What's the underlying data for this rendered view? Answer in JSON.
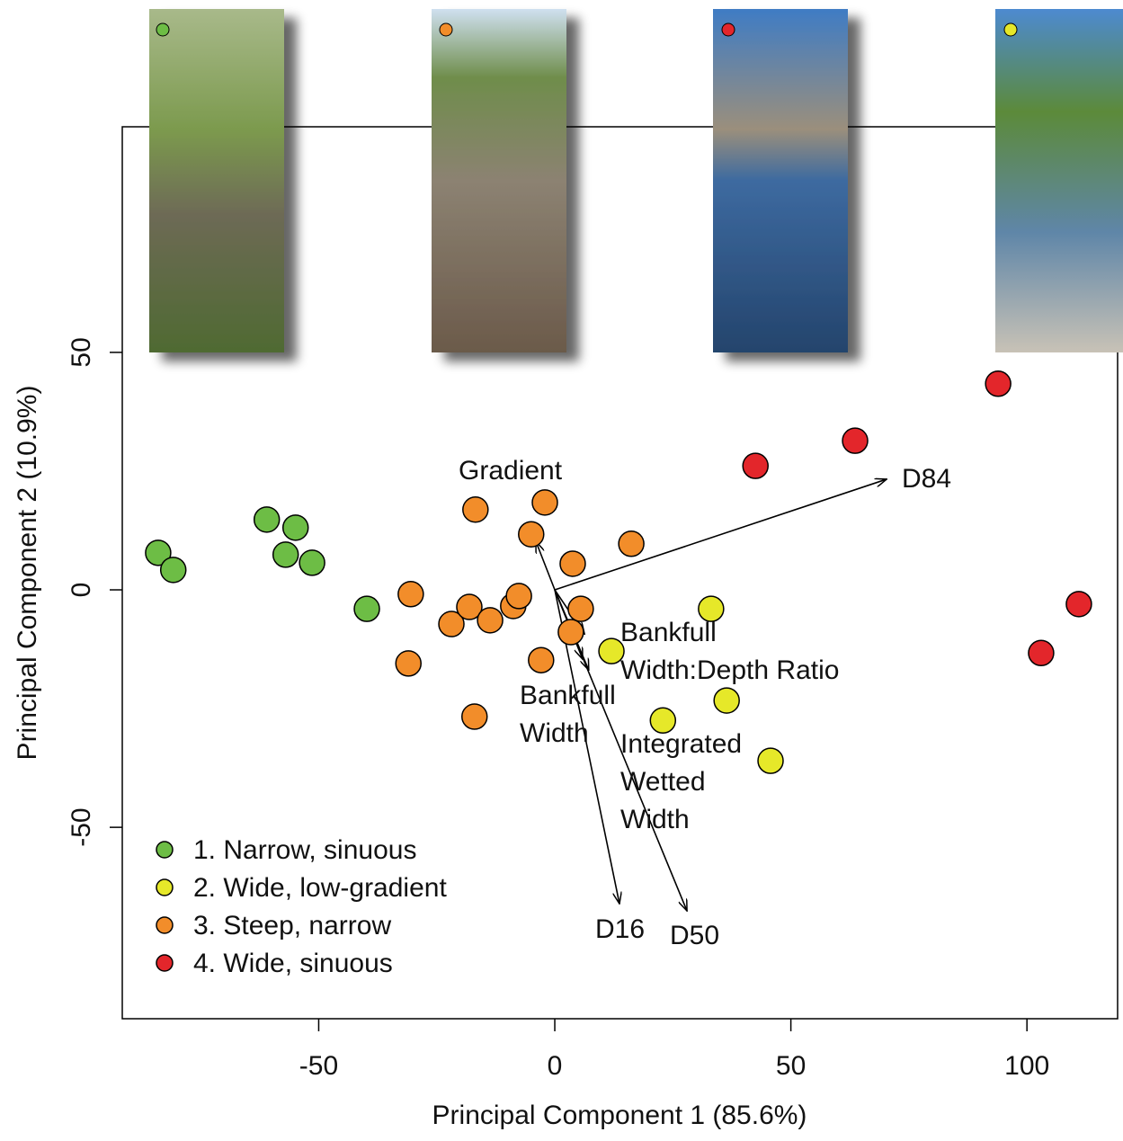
{
  "chart_data": {
    "type": "scatter",
    "x_label": "Principal Component 1 (85.6%)",
    "y_label": "Principal Component 2 (10.9%)",
    "xlim": [
      -91.6,
      119.2
    ],
    "ylim": [
      -90.3,
      97.5
    ],
    "xticks": [
      -50,
      0,
      50,
      100
    ],
    "yticks": [
      -50,
      0,
      50
    ],
    "legend": "bottom-left",
    "series": [
      {
        "name": "1. Narrow, sinuous",
        "color": "#6dbd45",
        "x": [
          -84.0,
          -80.8,
          -61.0,
          -54.9,
          -57.0,
          -51.4,
          -39.8
        ],
        "y": [
          7.8,
          4.2,
          14.8,
          13.1,
          7.4,
          5.7,
          -4.0
        ]
      },
      {
        "name": "2. Wide, low-gradient",
        "color": "#e6e829",
        "x": [
          33.1,
          12.0,
          36.4,
          22.9,
          45.7
        ],
        "y": [
          -4.0,
          -12.9,
          -23.3,
          -27.5,
          -36.0
        ]
      },
      {
        "name": "3. Steep, narrow",
        "color": "#f28d2a",
        "x": [
          -30.5,
          -21.9,
          -18.1,
          -13.7,
          -8.8,
          -7.6,
          5.5,
          3.4,
          -2.9,
          -31.0,
          -17.0,
          -16.8,
          -2.1,
          -5.0,
          3.8,
          16.2
        ],
        "y": [
          -0.9,
          -7.2,
          -3.6,
          -6.4,
          -3.4,
          -1.3,
          -4.0,
          -8.9,
          -14.8,
          -15.5,
          -26.7,
          16.9,
          18.4,
          11.7,
          5.5,
          9.7
        ]
      },
      {
        "name": "4. Wide, sinuous",
        "color": "#e3262b",
        "x": [
          93.9,
          63.6,
          42.5,
          111.0,
          103.0
        ],
        "y": [
          43.4,
          31.4,
          26.1,
          -3.0,
          -13.3
        ]
      }
    ],
    "loadings": [
      {
        "label_lines": [
          "D84"
        ],
        "x": 70.3,
        "y": 23.3
      },
      {
        "label_lines": [
          "Gradient"
        ],
        "x": -4.0,
        "y": 10.2
      },
      {
        "label_lines": [
          "Bankfull",
          "Width:Depth Ratio"
        ],
        "x": 6.3,
        "y": -9.3
      },
      {
        "label_lines": [
          "Bankfull",
          "Width"
        ],
        "x": 7.2,
        "y": -16.9
      },
      {
        "label_lines": [
          "Integrated",
          "Wetted",
          "Width"
        ],
        "x": 5.9,
        "y": -14.6
      },
      {
        "label_lines": [
          "D16"
        ],
        "x": 13.7,
        "y": -66.1
      },
      {
        "label_lines": [
          "D50"
        ],
        "x": 28.0,
        "y": -67.6
      }
    ]
  }
}
